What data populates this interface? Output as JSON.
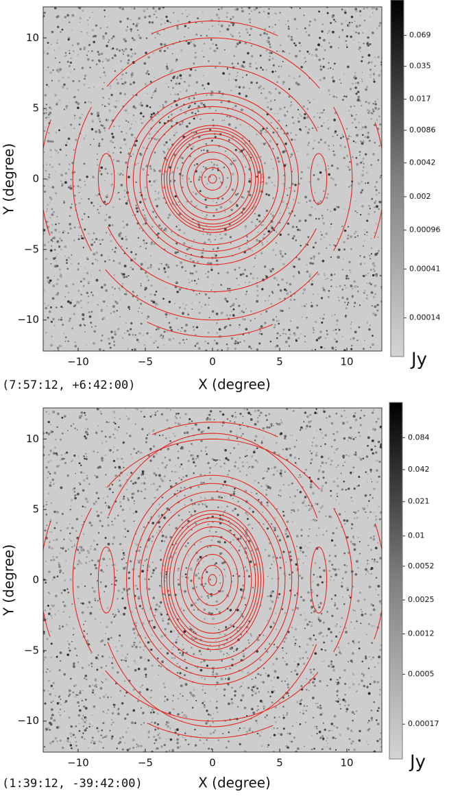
{
  "chart_data": [
    {
      "type": "image",
      "caption": "(7:57:12, +6:42:00)",
      "x_label": "X (degree)",
      "y_label": "Y (degree)",
      "xlim": [
        -12.6,
        12.6
      ],
      "ylim": [
        -12.2,
        12.2
      ],
      "xticks": [
        {
          "value": -10,
          "label": "−10"
        },
        {
          "value": -5,
          "label": "−5"
        },
        0,
        5,
        10
      ],
      "yticks": [
        {
          "value": -10,
          "label": "−10"
        },
        {
          "value": -5,
          "label": "−5"
        },
        0,
        5,
        10
      ],
      "contour_color": "#e8241e",
      "colorbar": {
        "label": "Jy",
        "scale": "log",
        "clim": [
          6e-05,
          0.15
        ],
        "ticks": [
          0.069,
          0.035,
          0.017,
          0.0086,
          0.0042,
          0.002,
          0.00096,
          0.00041,
          0.00014
        ]
      }
    },
    {
      "type": "image",
      "caption": "(1:39:12, -39:42:00)",
      "x_label": "X (degree)",
      "y_label": "Y (degree)",
      "xlim": [
        -12.6,
        12.6
      ],
      "ylim": [
        -12.2,
        12.2
      ],
      "xticks": [
        {
          "value": -10,
          "label": "−10"
        },
        {
          "value": -5,
          "label": "−5"
        },
        0,
        5,
        10
      ],
      "yticks": [
        {
          "value": -10,
          "label": "−10"
        },
        {
          "value": -5,
          "label": "−5"
        },
        0,
        5,
        10
      ],
      "contour_color": "#e8241e",
      "colorbar": {
        "label": "Jy",
        "scale": "log",
        "clim": [
          8e-05,
          0.18
        ],
        "ticks": [
          0.084,
          0.042,
          0.021,
          0.01,
          0.0052,
          0.0025,
          0.0012,
          0.0005,
          0.00017
        ]
      }
    }
  ]
}
